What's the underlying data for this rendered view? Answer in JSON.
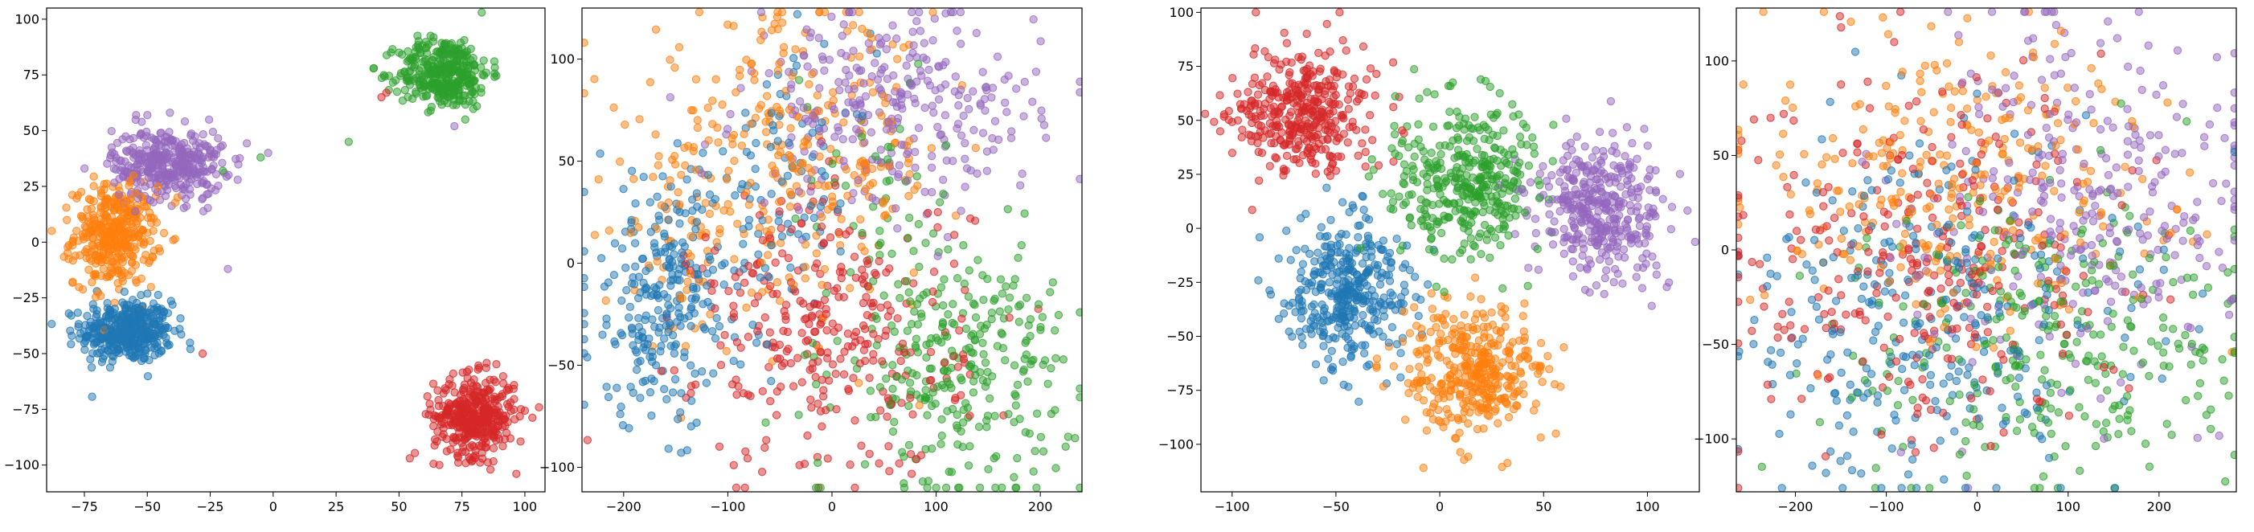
{
  "chart_data": [
    {
      "type": "scatter",
      "title": "",
      "xlabel": "",
      "ylabel": "",
      "xlim": [
        -90,
        108
      ],
      "ylim": [
        -112,
        105
      ],
      "xticks": [
        -75,
        -50,
        -25,
        0,
        25,
        50,
        75,
        100
      ],
      "yticks": [
        -100,
        -75,
        -50,
        -25,
        0,
        25,
        50,
        75,
        100
      ],
      "grid": false,
      "series": [
        {
          "color": "#1f77b4",
          "clusters": [
            {
              "cx": -58,
              "cy": -40,
              "sx": 9,
              "sy": 7,
              "n": 420
            }
          ],
          "extras": [
            [
              -70,
              -22
            ],
            [
              -40,
              -28
            ],
            [
              -80,
              -42
            ]
          ]
        },
        {
          "color": "#ff7f0e",
          "clusters": [
            {
              "cx": -63,
              "cy": 3,
              "sx": 8,
              "sy": 11,
              "n": 380
            }
          ],
          "extras": [
            [
              -38,
              20
            ],
            [
              -88,
              5
            ],
            [
              -72,
              -18
            ]
          ]
        },
        {
          "color": "#2ca02c",
          "clusters": [
            {
              "cx": 68,
              "cy": 76,
              "sx": 9,
              "sy": 8,
              "n": 360
            }
          ],
          "extras": [
            [
              30,
              45
            ],
            [
              -5,
              38
            ],
            [
              -20,
              32
            ],
            [
              40,
              78
            ]
          ]
        },
        {
          "color": "#d62728",
          "clusters": [
            {
              "cx": 80,
              "cy": -78,
              "sx": 8,
              "sy": 9,
              "n": 400
            }
          ],
          "extras": [
            [
              45,
              67
            ],
            [
              -28,
              -50
            ],
            [
              43,
              65
            ]
          ]
        },
        {
          "color": "#9467bd",
          "clusters": [
            {
              "cx": -42,
              "cy": 35,
              "sx": 11,
              "sy": 8,
              "n": 380
            }
          ],
          "extras": [
            [
              -18,
              -12
            ],
            [
              72,
              52
            ],
            [
              -50,
              57
            ],
            [
              -2,
              40
            ]
          ]
        }
      ]
    },
    {
      "type": "scatter",
      "title": "",
      "xlabel": "",
      "ylabel": "",
      "xlim": [
        -240,
        240
      ],
      "ylim": [
        -112,
        125
      ],
      "xticks": [
        -200,
        -100,
        0,
        100,
        200
      ],
      "yticks": [
        -100,
        -50,
        0,
        50,
        100
      ],
      "grid": false,
      "series": [
        {
          "color": "#1f77b4",
          "clusters": [
            {
              "cx": -160,
              "cy": -18,
              "sx": 40,
              "sy": 30,
              "n": 280
            },
            {
              "cx": -40,
              "cy": 45,
              "sx": 40,
              "sy": 30,
              "n": 80
            }
          ],
          "extras": []
        },
        {
          "color": "#ff7f0e",
          "clusters": [
            {
              "cx": -40,
              "cy": 50,
              "sx": 75,
              "sy": 35,
              "n": 300
            },
            {
              "cx": -150,
              "cy": 10,
              "sx": 25,
              "sy": 25,
              "n": 40
            }
          ],
          "extras": []
        },
        {
          "color": "#2ca02c",
          "clusters": [
            {
              "cx": 120,
              "cy": -50,
              "sx": 55,
              "sy": 30,
              "n": 300
            },
            {
              "cx": 40,
              "cy": 40,
              "sx": 40,
              "sy": 30,
              "n": 40
            }
          ],
          "extras": []
        },
        {
          "color": "#d62728",
          "clusters": [
            {
              "cx": 0,
              "cy": -35,
              "sx": 65,
              "sy": 35,
              "n": 320
            }
          ],
          "extras": []
        },
        {
          "color": "#9467bd",
          "clusters": [
            {
              "cx": 60,
              "cy": 75,
              "sx": 70,
              "sy": 25,
              "n": 300
            }
          ],
          "extras": []
        }
      ]
    },
    {
      "type": "scatter",
      "title": "",
      "xlabel": "",
      "ylabel": "",
      "xlim": [
        -115,
        125
      ],
      "ylim": [
        -122,
        102
      ],
      "xticks": [
        -100,
        -50,
        0,
        50,
        100
      ],
      "yticks": [
        -100,
        -75,
        -50,
        -25,
        0,
        25,
        50,
        75,
        100
      ],
      "grid": false,
      "series": [
        {
          "color": "#1f77b4",
          "clusters": [
            {
              "cx": -45,
              "cy": -28,
              "sx": 15,
              "sy": 17,
              "n": 380
            }
          ],
          "extras": []
        },
        {
          "color": "#ff7f0e",
          "clusters": [
            {
              "cx": 15,
              "cy": -65,
              "sx": 17,
              "sy": 15,
              "n": 380
            }
          ],
          "extras": []
        },
        {
          "color": "#2ca02c",
          "clusters": [
            {
              "cx": 12,
              "cy": 22,
              "sx": 18,
              "sy": 17,
              "n": 380
            }
          ],
          "extras": []
        },
        {
          "color": "#d62728",
          "clusters": [
            {
              "cx": -65,
              "cy": 55,
              "sx": 17,
              "sy": 14,
              "n": 380
            }
          ],
          "extras": []
        },
        {
          "color": "#9467bd",
          "clusters": [
            {
              "cx": 78,
              "cy": 10,
              "sx": 16,
              "sy": 16,
              "n": 380
            }
          ],
          "extras": []
        }
      ]
    },
    {
      "type": "scatter",
      "title": "",
      "xlabel": "",
      "ylabel": "",
      "xlim": [
        -265,
        285
      ],
      "ylim": [
        -128,
        128
      ],
      "xticks": [
        -200,
        -100,
        0,
        100,
        200
      ],
      "yticks": [
        -100,
        -50,
        0,
        50,
        100
      ],
      "grid": false,
      "series": [
        {
          "color": "#1f77b4",
          "clusters": [
            {
              "cx": -40,
              "cy": -35,
              "sx": 110,
              "sy": 45,
              "n": 300
            }
          ],
          "extras": []
        },
        {
          "color": "#ff7f0e",
          "clusters": [
            {
              "cx": -20,
              "cy": 40,
              "sx": 110,
              "sy": 40,
              "n": 300
            }
          ],
          "extras": []
        },
        {
          "color": "#2ca02c",
          "clusters": [
            {
              "cx": 80,
              "cy": -45,
              "sx": 110,
              "sy": 40,
              "n": 300
            }
          ],
          "extras": []
        },
        {
          "color": "#d62728",
          "clusters": [
            {
              "cx": -60,
              "cy": -10,
              "sx": 110,
              "sy": 50,
              "n": 300
            }
          ],
          "extras": []
        },
        {
          "color": "#9467bd",
          "clusters": [
            {
              "cx": 110,
              "cy": 30,
              "sx": 95,
              "sy": 50,
              "n": 300
            }
          ],
          "extras": []
        }
      ]
    }
  ]
}
